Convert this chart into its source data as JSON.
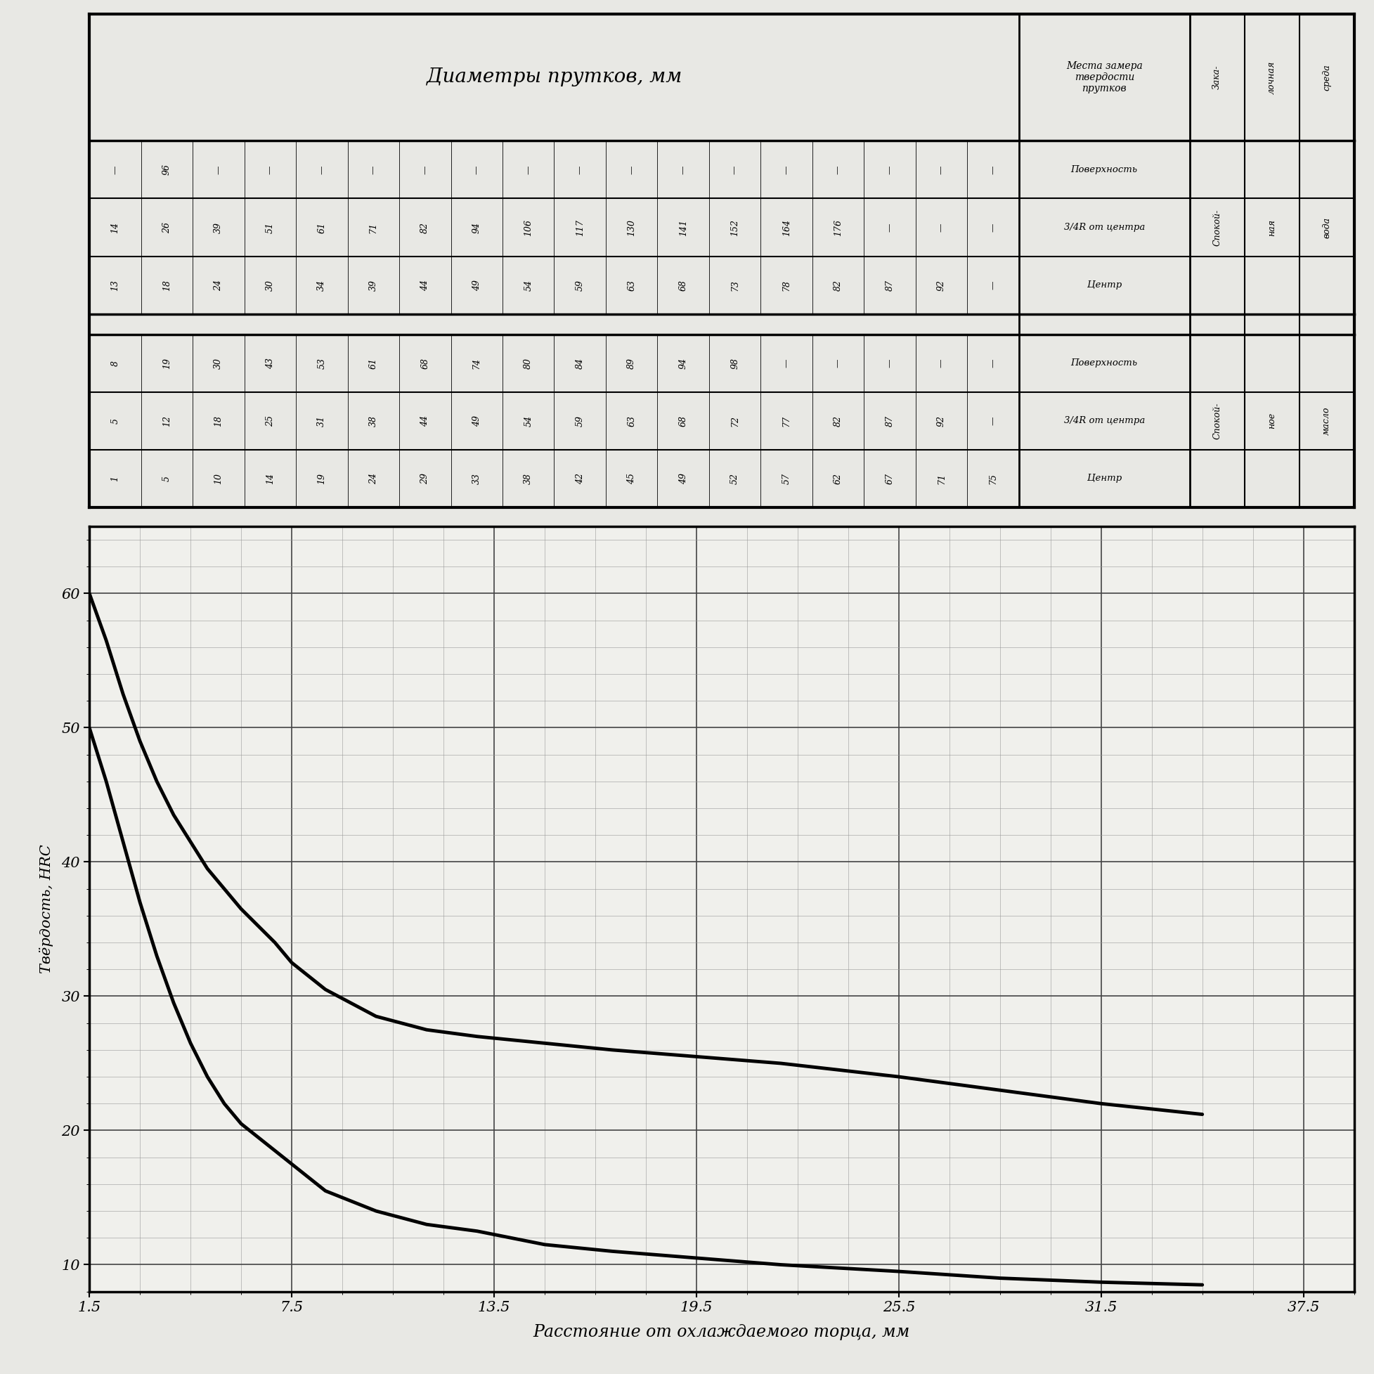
{
  "title_header": "Диаметры прутков, мм",
  "col_header_location": "Места замера\nтвердости\nпрутков",
  "water_data_rows": [
    [
      "—",
      "96",
      "—",
      "—",
      "—",
      "—",
      "—",
      "—",
      "—",
      "—",
      "—",
      "—",
      "—",
      "—",
      "—",
      "—",
      "—",
      "—"
    ],
    [
      "14",
      "26",
      "39",
      "51",
      "61",
      "71",
      "82",
      "94",
      "106",
      "117",
      "130",
      "141",
      "152",
      "164",
      "176",
      "—",
      "—",
      "—"
    ],
    [
      "13",
      "18",
      "24",
      "30",
      "34",
      "39",
      "44",
      "49",
      "54",
      "59",
      "63",
      "68",
      "73",
      "78",
      "82",
      "87",
      "92",
      "—"
    ]
  ],
  "water_labels": [
    "Поверхность",
    "3/4R от центра",
    "Центр"
  ],
  "water_medium_lines": [
    "Спокой-",
    "ная",
    "вода"
  ],
  "oil_data_rows": [
    [
      "8",
      "19",
      "30",
      "43",
      "53",
      "61",
      "68",
      "74",
      "80",
      "84",
      "89",
      "94",
      "98",
      "—",
      "—",
      "—",
      "—",
      "—"
    ],
    [
      "5",
      "12",
      "18",
      "25",
      "31",
      "38",
      "44",
      "49",
      "54",
      "59",
      "63",
      "68",
      "72",
      "77",
      "82",
      "87",
      "92",
      "—"
    ],
    [
      "1",
      "5",
      "10",
      "14",
      "19",
      "24",
      "29",
      "33",
      "38",
      "42",
      "45",
      "49",
      "52",
      "57",
      "62",
      "67",
      "71",
      "75"
    ]
  ],
  "oil_labels": [
    "Поверхность",
    "3/4R от центра",
    "Центр"
  ],
  "oil_medium_lines": [
    "Спокой-",
    "ное",
    "масло"
  ],
  "xlabel": "Расстояние от охлаждаемого торца, мм",
  "ylabel": "Твёрдость, HRC",
  "xticks": [
    1.5,
    7.5,
    13.5,
    19.5,
    25.5,
    31.5,
    37.5
  ],
  "yticks": [
    10,
    20,
    30,
    40,
    50,
    60
  ],
  "ylim": [
    8,
    65
  ],
  "xlim": [
    1.5,
    39
  ],
  "curve_upper_x": [
    1.5,
    2.0,
    2.5,
    3.0,
    3.5,
    4.0,
    4.5,
    5.0,
    5.5,
    6.0,
    7.0,
    7.5,
    8.5,
    10.0,
    11.5,
    13.0,
    15.0,
    17.0,
    19.5,
    22.0,
    25.5,
    28.5,
    31.5,
    34.5
  ],
  "curve_upper_y": [
    60.0,
    56.5,
    52.5,
    49.0,
    46.0,
    43.5,
    41.5,
    39.5,
    38.0,
    36.5,
    34.0,
    32.5,
    30.5,
    28.5,
    27.5,
    27.0,
    26.5,
    26.0,
    25.5,
    25.0,
    24.0,
    23.0,
    22.0,
    21.2
  ],
  "curve_lower_x": [
    1.5,
    2.0,
    2.5,
    3.0,
    3.5,
    4.0,
    4.5,
    5.0,
    5.5,
    6.0,
    7.0,
    7.5,
    8.5,
    10.0,
    11.5,
    13.0,
    15.0,
    17.0,
    19.5,
    22.0,
    25.5,
    28.5,
    31.5,
    34.5
  ],
  "curve_lower_y": [
    50.0,
    46.0,
    41.5,
    37.0,
    33.0,
    29.5,
    26.5,
    24.0,
    22.0,
    20.5,
    18.5,
    17.5,
    15.5,
    14.0,
    13.0,
    12.5,
    11.5,
    11.0,
    10.5,
    10.0,
    9.5,
    9.0,
    8.7,
    8.5
  ]
}
